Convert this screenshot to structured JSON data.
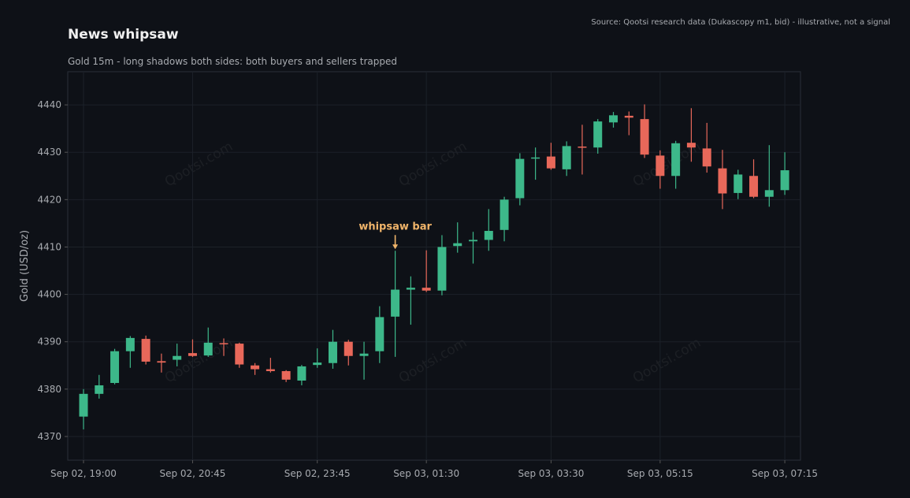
{
  "source": "Source: Qootsi research data (Dukascopy m1, bid) - illustrative, not a signal",
  "watermark": "Qootsi.com",
  "colors": {
    "background": "#0e1117",
    "up": "#3db88a",
    "down": "#e8685a",
    "grid": "#1c2129",
    "annotation": "#f0b46a"
  },
  "chart_data": {
    "type": "candlestick",
    "title": "News whipsaw",
    "subtitle": "Gold 15m - long shadows both sides: both buyers and sellers trapped",
    "ylabel": "Gold (USD/oz)",
    "ylim": [
      4365,
      4447
    ],
    "yticks": [
      4370,
      4380,
      4390,
      4400,
      4410,
      4420,
      4430,
      4440
    ],
    "xticks": [
      {
        "index": 0,
        "label": "Sep 02, 19:00"
      },
      {
        "index": 7,
        "label": "Sep 02, 20:45"
      },
      {
        "index": 15,
        "label": "Sep 02, 23:45"
      },
      {
        "index": 22,
        "label": "Sep 03, 01:30"
      },
      {
        "index": 30,
        "label": "Sep 03, 03:30"
      },
      {
        "index": 37,
        "label": "Sep 03, 05:15"
      },
      {
        "index": 45,
        "label": "Sep 03, 07:15"
      }
    ],
    "annotation": {
      "text": "whipsaw bar",
      "index": 20
    },
    "candles": [
      {
        "o": 4374.2,
        "h": 4380.0,
        "l": 4371.5,
        "c": 4379.0
      },
      {
        "o": 4379.0,
        "h": 4383.0,
        "l": 4378.0,
        "c": 4380.8
      },
      {
        "o": 4381.3,
        "h": 4388.5,
        "l": 4381.0,
        "c": 4388.0
      },
      {
        "o": 4388.0,
        "h": 4391.2,
        "l": 4384.5,
        "c": 4390.8
      },
      {
        "o": 4390.6,
        "h": 4391.3,
        "l": 4385.2,
        "c": 4385.8
      },
      {
        "o": 4385.9,
        "h": 4387.5,
        "l": 4383.5,
        "c": 4385.6
      },
      {
        "o": 4386.2,
        "h": 4389.6,
        "l": 4384.8,
        "c": 4387.0
      },
      {
        "o": 4387.6,
        "h": 4390.5,
        "l": 4386.8,
        "c": 4387.0
      },
      {
        "o": 4387.1,
        "h": 4393.0,
        "l": 4386.8,
        "c": 4389.8
      },
      {
        "o": 4389.7,
        "h": 4390.7,
        "l": 4387.0,
        "c": 4389.5
      },
      {
        "o": 4389.6,
        "h": 4389.8,
        "l": 4384.5,
        "c": 4385.2
      },
      {
        "o": 4385.0,
        "h": 4385.5,
        "l": 4383.0,
        "c": 4384.2
      },
      {
        "o": 4384.2,
        "h": 4386.6,
        "l": 4383.5,
        "c": 4383.8
      },
      {
        "o": 4383.8,
        "h": 4384.0,
        "l": 4381.5,
        "c": 4382.0
      },
      {
        "o": 4381.8,
        "h": 4385.1,
        "l": 4380.8,
        "c": 4384.8
      },
      {
        "o": 4385.1,
        "h": 4388.6,
        "l": 4384.5,
        "c": 4385.6
      },
      {
        "o": 4385.5,
        "h": 4392.5,
        "l": 4384.3,
        "c": 4390.0
      },
      {
        "o": 4390.0,
        "h": 4390.4,
        "l": 4385.0,
        "c": 4387.0
      },
      {
        "o": 4387.0,
        "h": 4390.0,
        "l": 4382.0,
        "c": 4387.5
      },
      {
        "o": 4388.0,
        "h": 4397.5,
        "l": 4385.5,
        "c": 4395.2
      },
      {
        "o": 4395.3,
        "h": 4409.2,
        "l": 4386.8,
        "c": 4401.0
      },
      {
        "o": 4401.0,
        "h": 4403.8,
        "l": 4393.6,
        "c": 4401.4
      },
      {
        "o": 4401.4,
        "h": 4409.3,
        "l": 4400.5,
        "c": 4400.8
      },
      {
        "o": 4400.8,
        "h": 4412.5,
        "l": 4399.8,
        "c": 4410.0
      },
      {
        "o": 4410.2,
        "h": 4415.2,
        "l": 4408.8,
        "c": 4410.8
      },
      {
        "o": 4411.2,
        "h": 4413.2,
        "l": 4406.5,
        "c": 4411.5
      },
      {
        "o": 4411.5,
        "h": 4418.0,
        "l": 4409.2,
        "c": 4413.4
      },
      {
        "o": 4413.6,
        "h": 4420.6,
        "l": 4411.2,
        "c": 4420.0
      },
      {
        "o": 4420.3,
        "h": 4429.8,
        "l": 4418.8,
        "c": 4428.6
      },
      {
        "o": 4428.8,
        "h": 4431.0,
        "l": 4424.2,
        "c": 4428.9
      },
      {
        "o": 4429.1,
        "h": 4432.0,
        "l": 4426.3,
        "c": 4426.6
      },
      {
        "o": 4426.4,
        "h": 4432.3,
        "l": 4425.0,
        "c": 4431.3
      },
      {
        "o": 4431.2,
        "h": 4435.8,
        "l": 4425.3,
        "c": 4431.0
      },
      {
        "o": 4431.0,
        "h": 4437.0,
        "l": 4429.7,
        "c": 4436.5
      },
      {
        "o": 4436.3,
        "h": 4438.5,
        "l": 4435.2,
        "c": 4437.8
      },
      {
        "o": 4437.7,
        "h": 4438.6,
        "l": 4433.6,
        "c": 4437.3
      },
      {
        "o": 4437.0,
        "h": 4440.1,
        "l": 4428.8,
        "c": 4429.5
      },
      {
        "o": 4429.3,
        "h": 4430.4,
        "l": 4422.3,
        "c": 4425.0
      },
      {
        "o": 4425.0,
        "h": 4432.4,
        "l": 4422.3,
        "c": 4431.9
      },
      {
        "o": 4432.0,
        "h": 4439.3,
        "l": 4428.0,
        "c": 4431.0
      },
      {
        "o": 4430.8,
        "h": 4436.2,
        "l": 4425.7,
        "c": 4427.0
      },
      {
        "o": 4426.6,
        "h": 4430.5,
        "l": 4418.0,
        "c": 4421.3
      },
      {
        "o": 4421.4,
        "h": 4426.3,
        "l": 4420.1,
        "c": 4425.3
      },
      {
        "o": 4425.0,
        "h": 4428.5,
        "l": 4420.3,
        "c": 4420.6
      },
      {
        "o": 4420.6,
        "h": 4431.5,
        "l": 4418.5,
        "c": 4422.0
      },
      {
        "o": 4422.0,
        "h": 4430.0,
        "l": 4421.0,
        "c": 4426.2
      }
    ]
  }
}
